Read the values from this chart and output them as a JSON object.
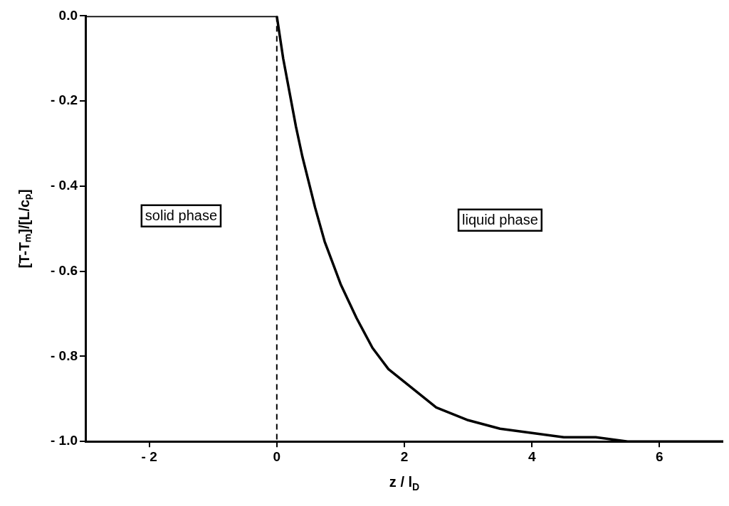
{
  "chart_data": {
    "type": "line",
    "xlabel": "z / l$_{D}$",
    "ylabel": "[T-Tₘ]/[L/cₚ]",
    "series": [
      {
        "color": "#000000",
        "x": [
          -3,
          0,
          0.1,
          0.2,
          0.3,
          0.4,
          0.5,
          0.6,
          0.75,
          0.9,
          1,
          1.25,
          1.5,
          1.75,
          2,
          2.25,
          2.5,
          3,
          3.5,
          4,
          4.5,
          5,
          5.5,
          6,
          7
        ],
        "values": [
          0,
          0,
          -0.1,
          -0.18,
          -0.26,
          -0.33,
          -0.39,
          -0.45,
          -0.53,
          -0.59,
          -0.63,
          -0.71,
          -0.78,
          -0.83,
          -0.86,
          -0.89,
          -0.92,
          -0.95,
          -0.97,
          -0.98,
          -0.99,
          -0.99,
          -1,
          -1,
          -1
        ]
      }
    ],
    "xlim": [
      -3,
      7
    ],
    "xticks": [
      {
        "value": -2,
        "label": "- 2"
      },
      0,
      2,
      4,
      6
    ],
    "ylim": [
      -1,
      0
    ],
    "yticks": [
      {
        "value": 0,
        "label": "0.0"
      },
      {
        "value": -0.2,
        "label": "- 0.2"
      },
      {
        "value": -0.4,
        "label": "- 0.4"
      },
      {
        "value": -0.6,
        "label": "- 0.6"
      },
      {
        "value": -0.8,
        "label": "- 0.8"
      },
      {
        "value": -1,
        "label": "- 1.0"
      }
    ],
    "ref_lines": [
      {
        "axis": "x",
        "value": 0,
        "line_style": "dashed",
        "color": "#000000"
      }
    ],
    "annotations": [
      "solid phase",
      "liquid phase"
    ],
    "grid": false,
    "legend": false,
    "marker": "none",
    "line_style": "solid"
  }
}
